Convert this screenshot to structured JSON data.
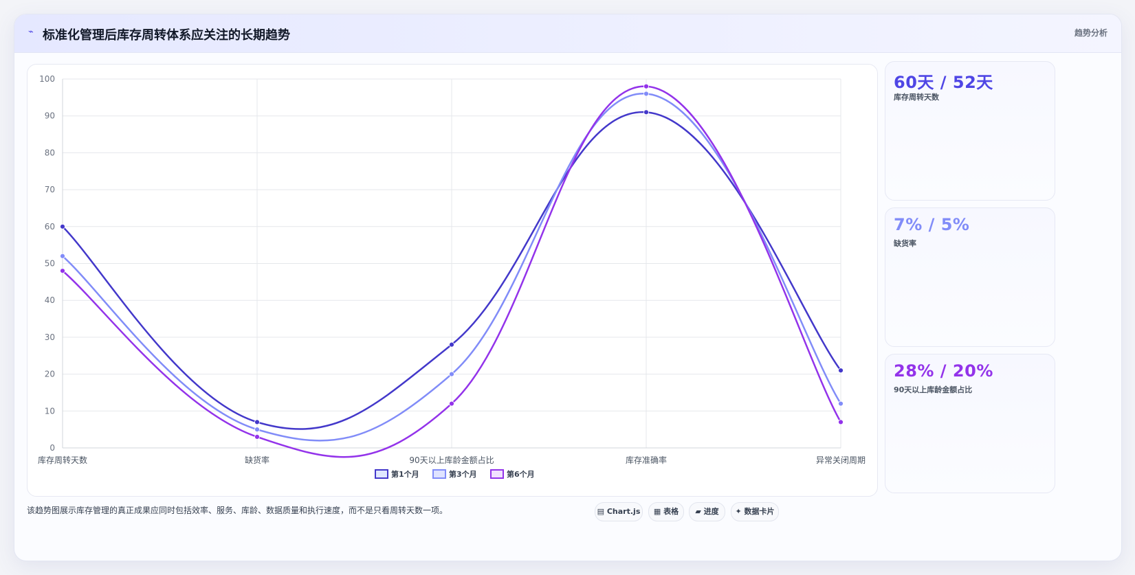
{
  "header": {
    "icon": "trend-line-icon",
    "title": "标准化管理后库存周转体系应关注的长期趋势",
    "tag": "趋势分析"
  },
  "kpis": [
    {
      "value": "60天 / 52天",
      "label": "库存周转天数",
      "color": "#4f46e5"
    },
    {
      "value": "7% / 5%",
      "label": "缺货率",
      "color": "#818cf8"
    },
    {
      "value": "28% / 20%",
      "label": "90天以上库龄金额占比",
      "color": "#9333ea"
    }
  ],
  "footnote": "该趋势图展示库存管理的真正成果应同时包括效率、服务、库龄、数据质量和执行速度，而不是只看周转天数一项。",
  "chips": [
    {
      "icon": "▤",
      "label": "Chart.js"
    },
    {
      "icon": "▦",
      "label": "表格"
    },
    {
      "icon": "▰",
      "label": "进度"
    },
    {
      "icon": "✦",
      "label": "数据卡片"
    }
  ],
  "chart_data": {
    "type": "line",
    "categories": [
      "库存周转天数",
      "缺货率",
      "90天以上库龄金额占比",
      "库存准确率",
      "异常关闭周期"
    ],
    "series": [
      {
        "name": "第1个月",
        "values": [
          60,
          7,
          28,
          91,
          21
        ],
        "color": "#4338ca",
        "fill": "#e0e7ff"
      },
      {
        "name": "第3个月",
        "values": [
          52,
          5,
          20,
          96,
          12
        ],
        "color": "#818cf8",
        "fill": "#dfe3ff"
      },
      {
        "name": "第6个月",
        "values": [
          48,
          3,
          12,
          98,
          7
        ],
        "color": "#9333ea",
        "fill": "#f1e0ff"
      }
    ],
    "ylim": [
      0,
      100
    ],
    "yticks": [
      0,
      10,
      20,
      30,
      40,
      50,
      60,
      70,
      80,
      90,
      100
    ],
    "grid": true,
    "legend": "bottom"
  }
}
